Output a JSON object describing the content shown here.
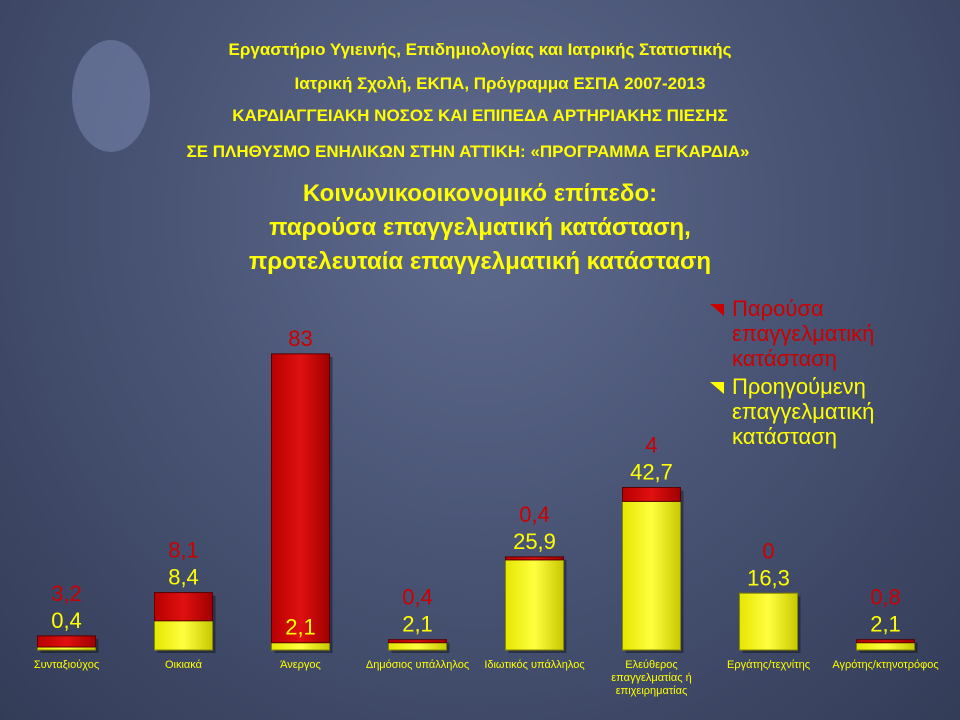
{
  "header": {
    "line1": "Εργαστήριο Υγιεινής, Επιδημιολογίας και Ιατρικής Στατιστικής",
    "line2": "Ιατρική Σχολή, ΕΚΠΑ, Πρόγραμμα ΕΣΠΑ  2007-2013",
    "line3": "ΚΑΡΔΙΑΓΓΕΙΑΚΗ ΝΟΣΟΣ ΚΑΙ ΕΠΙΠΕΔΑ ΑΡΤΗΡΙΑΚΗΣ ΠΙΕΣΗΣ",
    "line4": "ΣΕ ΠΛΗΘΥΣΜΟ ΕΝΗΛΙΚΩΝ ΣΤΗΝ ΑΤΤΙΚΗ: «ΠΡΟΓΡΑΜΜΑ ΕΓΚΑΡΔΙΑ»"
  },
  "colors": {
    "current": "#cc0000",
    "previous": "#ffff00",
    "text": "#ffff00",
    "labels_current": "#cc0000"
  },
  "chart_data": {
    "type": "bar",
    "title": [
      "Κοινωνικοοικονομικό επίπεδο:",
      "παρούσα επαγγελματική κατάσταση,",
      "προτελευταία επαγγελματική κατάσταση"
    ],
    "categories": [
      [
        "Συνταξιούχος"
      ],
      [
        "Οικιακά"
      ],
      [
        "Άνεργος"
      ],
      [
        "Δημόσιος υπάλληλος"
      ],
      [
        "Ιδιωτικός υπάλληλος"
      ],
      [
        "Ελεύθερος",
        "επαγγελματίας ή",
        "επιχειρηματίας"
      ],
      [
        "Εργάτης/τεχνίτης"
      ],
      [
        "Αγρότης/κτηνοτρόφος"
      ]
    ],
    "series": [
      {
        "name": "Παρούσα επαγγελματική κατάσταση",
        "color": "#cc0000",
        "values": [
          3.2,
          8.1,
          83,
          0.4,
          0.4,
          4,
          0,
          0.8
        ],
        "labels": [
          "3,2",
          "8,1",
          "83",
          "0,4",
          "0,4",
          "4",
          "0",
          "0,8"
        ]
      },
      {
        "name": "Προηγούμενη επαγγελματική κατάσταση",
        "color": "#ffff00",
        "values": [
          0.4,
          8.4,
          2.1,
          2.1,
          25.9,
          42.7,
          16.3,
          2.1
        ],
        "labels": [
          "0,4",
          "8,4",
          "2,1",
          "2,1",
          "25,9",
          "42,7",
          "16,3",
          "2,1"
        ]
      }
    ],
    "stacked": true,
    "legend": [
      [
        "Παρούσα",
        "επαγγελματική",
        "κατάσταση"
      ],
      [
        "Προηγούμενη",
        "επαγγελματική",
        "κατάσταση"
      ]
    ],
    "legend_position": "right",
    "grid": false,
    "xlabel": "",
    "ylabel": ""
  }
}
